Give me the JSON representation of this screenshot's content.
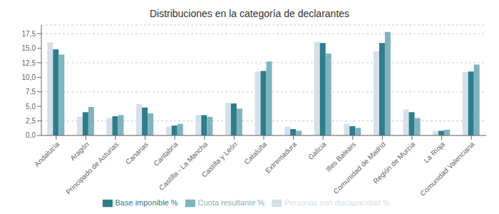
{
  "chart_data": {
    "type": "bar",
    "title": "Distribuciones en la categoría de declarantes",
    "categories": [
      "Andalucía",
      "Aragón",
      "Principado de Asturias",
      "Canarias",
      "Cantabria",
      "Castilla - La Mancha",
      "Castilla y León",
      "Cataluña",
      "Extremadura",
      "Galicia",
      "Illes Balears",
      "Comunidad de Madrid",
      "Región de Murcia",
      "La Rioja",
      "Comunidad Valenciana"
    ],
    "series": [
      {
        "name": "Personas con discapacidad %",
        "color": "#d6e0ea",
        "values": [
          16.0,
          3.2,
          3.0,
          5.4,
          1.5,
          3.5,
          5.6,
          11.0,
          1.5,
          16.1,
          2.0,
          14.5,
          4.5,
          0.8,
          10.9
        ]
      },
      {
        "name": "Base imponible %",
        "color": "#2e7d8c",
        "values": [
          14.8,
          4.0,
          3.3,
          4.8,
          1.7,
          3.5,
          5.5,
          11.1,
          1.1,
          15.9,
          1.6,
          15.9,
          4.0,
          0.8,
          11.0
        ]
      },
      {
        "name": "Cuota resultante %",
        "color": "#7fb3bf",
        "values": [
          13.9,
          4.9,
          3.5,
          3.8,
          2.0,
          3.2,
          4.6,
          12.7,
          0.8,
          14.1,
          1.3,
          17.8,
          3.0,
          1.0,
          12.2
        ]
      }
    ],
    "ylim": [
      0,
      19
    ],
    "yticks": [
      {
        "value": 0.0,
        "label": "0,0"
      },
      {
        "value": 2.5,
        "label": "2,5"
      },
      {
        "value": 5.0,
        "label": "5,0"
      },
      {
        "value": 7.5,
        "label": "7,5"
      },
      {
        "value": 10.0,
        "label": "10,0"
      },
      {
        "value": 12.5,
        "label": "12,5"
      },
      {
        "value": 15.0,
        "label": "15,0"
      },
      {
        "value": 17.5,
        "label": "17,5"
      }
    ],
    "grid": true,
    "legend": "bottom"
  }
}
